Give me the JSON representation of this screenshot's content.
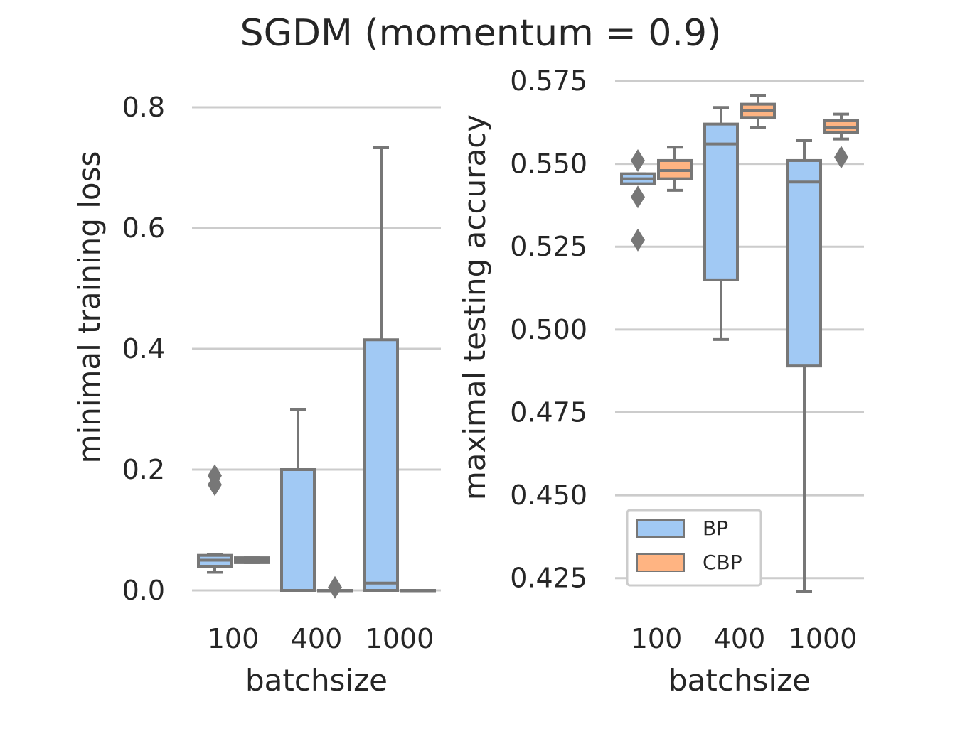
{
  "title": "SGDM (momentum = 0.9)",
  "colors": {
    "BP": "#a1c9f4",
    "CBP": "#ffb482",
    "line": "#777777",
    "grid": "#cccccc"
  },
  "legend": {
    "placement": "lower-left",
    "entries": [
      "BP",
      "CBP"
    ]
  },
  "chart_data": [
    {
      "type": "box",
      "xlabel": "batchsize",
      "ylabel": "minimal training loss",
      "categories": [
        "100",
        "400",
        "1000"
      ],
      "ylim": [
        -0.04,
        0.86
      ],
      "yticks": [
        0.0,
        0.2,
        0.4,
        0.6,
        0.8
      ],
      "ytick_labels": [
        "0.0",
        "0.2",
        "0.4",
        "0.6",
        "0.8"
      ],
      "grid": true,
      "series": [
        {
          "name": "BP",
          "boxes": [
            {
              "whislo": 0.03,
              "q1": 0.04,
              "med": 0.05,
              "q3": 0.058,
              "whishi": 0.06,
              "fliers": [
                0.175,
                0.19
              ]
            },
            {
              "whislo": 0.0,
              "q1": 0.0,
              "med": 0.0,
              "q3": 0.2,
              "whishi": 0.3,
              "fliers": []
            },
            {
              "whislo": 0.0,
              "q1": 0.0,
              "med": 0.012,
              "q3": 0.415,
              "whishi": 0.733,
              "fliers": []
            }
          ]
        },
        {
          "name": "CBP",
          "boxes": [
            {
              "whislo": 0.046,
              "q1": 0.046,
              "med": 0.05,
              "q3": 0.054,
              "whishi": 0.054,
              "fliers": []
            },
            {
              "whislo": 0.0,
              "q1": 0.0,
              "med": 0.0,
              "q3": 0.0,
              "whishi": 0.0,
              "fliers": [
                0.005
              ]
            },
            {
              "whislo": 0.0,
              "q1": 0.0,
              "med": 0.0,
              "q3": 0.0,
              "whishi": 0.0,
              "fliers": []
            }
          ]
        }
      ]
    },
    {
      "type": "box",
      "xlabel": "batchsize",
      "ylabel": "maximal testing accuracy",
      "categories": [
        "100",
        "400",
        "1000"
      ],
      "ylim": [
        0.414,
        0.578
      ],
      "yticks": [
        0.425,
        0.45,
        0.475,
        0.5,
        0.525,
        0.55,
        0.575
      ],
      "ytick_labels": [
        "0.425",
        "0.450",
        "0.475",
        "0.500",
        "0.525",
        "0.550",
        "0.575"
      ],
      "grid": true,
      "series": [
        {
          "name": "BP",
          "boxes": [
            {
              "whislo": 0.544,
              "q1": 0.544,
              "med": 0.5455,
              "q3": 0.547,
              "whishi": 0.547,
              "fliers": [
                0.527,
                0.54,
                0.551
              ]
            },
            {
              "whislo": 0.497,
              "q1": 0.515,
              "med": 0.556,
              "q3": 0.562,
              "whishi": 0.567,
              "fliers": []
            },
            {
              "whislo": 0.421,
              "q1": 0.489,
              "med": 0.5445,
              "q3": 0.551,
              "whishi": 0.557,
              "fliers": []
            }
          ]
        },
        {
          "name": "CBP",
          "boxes": [
            {
              "whislo": 0.542,
              "q1": 0.5455,
              "med": 0.548,
              "q3": 0.551,
              "whishi": 0.555,
              "fliers": []
            },
            {
              "whislo": 0.561,
              "q1": 0.564,
              "med": 0.566,
              "q3": 0.568,
              "whishi": 0.5705,
              "fliers": []
            },
            {
              "whislo": 0.5575,
              "q1": 0.5595,
              "med": 0.561,
              "q3": 0.563,
              "whishi": 0.565,
              "fliers": [
                0.552
              ]
            }
          ]
        }
      ]
    }
  ]
}
